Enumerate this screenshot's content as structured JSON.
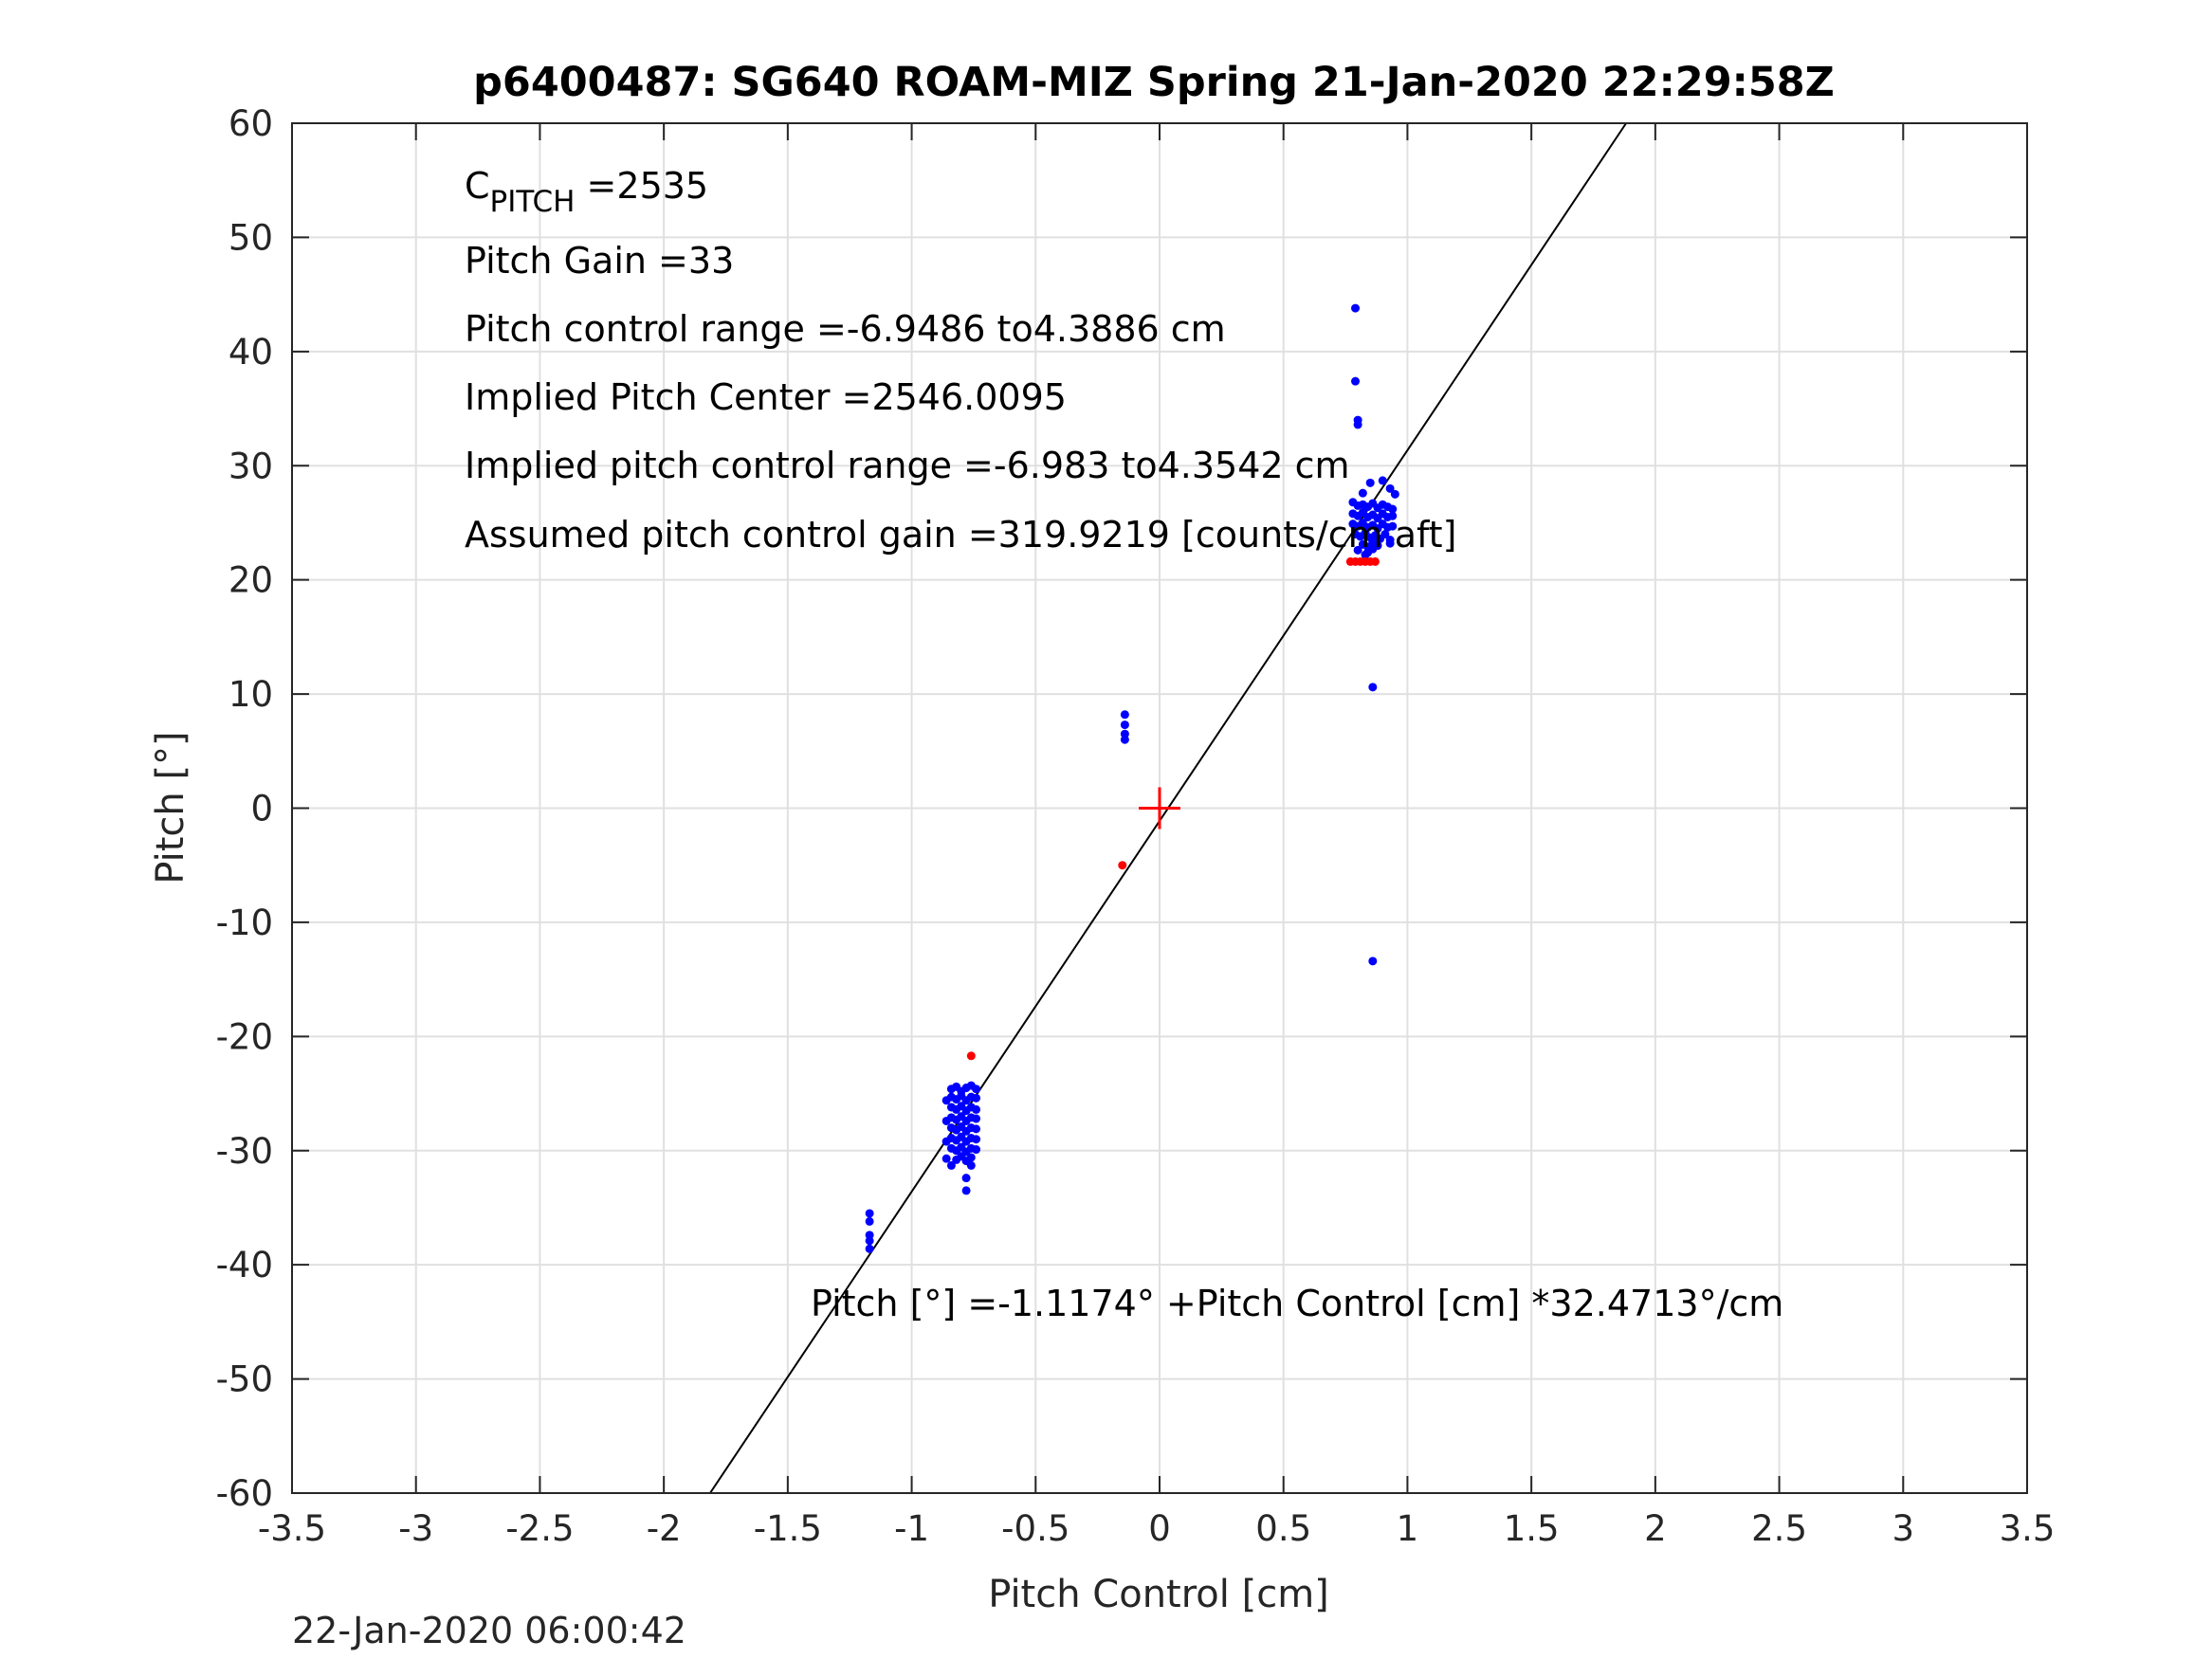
{
  "chart_data": {
    "type": "scatter",
    "title": "p6400487: SG640 ROAM-MIZ Spring 21-Jan-2020 22:29:58Z",
    "xlabel": "Pitch Control [cm]",
    "ylabel": "Pitch [°]",
    "xlim": [
      -3.5,
      3.5
    ],
    "ylim": [
      -60,
      60
    ],
    "xticks": [
      -3.5,
      -3,
      -2.5,
      -2,
      -1.5,
      -1,
      -0.5,
      0,
      0.5,
      1,
      1.5,
      2,
      2.5,
      3,
      3.5
    ],
    "xtick_labels": [
      "-3.5",
      "-3",
      "-2.5",
      "-2",
      "-1.5",
      "-1",
      "-0.5",
      "0",
      "0.5",
      "1",
      "1.5",
      "2",
      "2.5",
      "3",
      "3.5"
    ],
    "yticks": [
      -60,
      -50,
      -40,
      -30,
      -20,
      -10,
      0,
      10,
      20,
      30,
      40,
      50,
      60
    ],
    "ytick_labels": [
      "-60",
      "-50",
      "-40",
      "-30",
      "-20",
      "-10",
      "0",
      "10",
      "20",
      "30",
      "40",
      "50",
      "60"
    ],
    "grid": true,
    "colors": {
      "used": "#0000ff",
      "excluded": "#ff0000",
      "fit": "#000000",
      "center": "#ff0000"
    },
    "series": [
      {
        "points": [
          [
            0.79,
            43.8
          ],
          [
            0.79,
            37.4
          ],
          [
            0.8,
            34.0
          ],
          [
            0.8,
            33.6
          ],
          [
            0.86,
            10.6
          ],
          [
            0.86,
            -13.4
          ],
          [
            0.9,
            28.7
          ],
          [
            0.93,
            28.0
          ],
          [
            0.95,
            27.5
          ],
          [
            0.82,
            27.6
          ],
          [
            0.85,
            28.5
          ],
          [
            0.78,
            26.8
          ],
          [
            0.8,
            26.5
          ],
          [
            0.82,
            26.6
          ],
          [
            0.84,
            26.4
          ],
          [
            0.86,
            26.7
          ],
          [
            0.88,
            26.3
          ],
          [
            0.9,
            26.6
          ],
          [
            0.92,
            26.4
          ],
          [
            0.94,
            26.2
          ],
          [
            0.78,
            25.8
          ],
          [
            0.8,
            25.6
          ],
          [
            0.82,
            25.9
          ],
          [
            0.84,
            25.5
          ],
          [
            0.86,
            25.7
          ],
          [
            0.88,
            25.4
          ],
          [
            0.9,
            25.8
          ],
          [
            0.92,
            25.5
          ],
          [
            0.94,
            25.6
          ],
          [
            0.78,
            24.9
          ],
          [
            0.8,
            24.7
          ],
          [
            0.82,
            25.0
          ],
          [
            0.84,
            24.6
          ],
          [
            0.86,
            24.8
          ],
          [
            0.88,
            24.5
          ],
          [
            0.9,
            24.9
          ],
          [
            0.92,
            24.6
          ],
          [
            0.94,
            24.7
          ],
          [
            0.79,
            24.0
          ],
          [
            0.81,
            23.8
          ],
          [
            0.83,
            24.1
          ],
          [
            0.85,
            23.7
          ],
          [
            0.87,
            23.9
          ],
          [
            0.89,
            23.6
          ],
          [
            0.91,
            24.0
          ],
          [
            0.93,
            23.5
          ],
          [
            0.82,
            23.1
          ],
          [
            0.84,
            22.9
          ],
          [
            0.86,
            23.3
          ],
          [
            0.88,
            23.0
          ],
          [
            0.93,
            23.2
          ],
          [
            0.8,
            22.6
          ],
          [
            0.84,
            22.4
          ],
          [
            0.86,
            22.7
          ],
          [
            0.83,
            22.2
          ],
          [
            -0.14,
            8.2
          ],
          [
            -0.14,
            7.3
          ],
          [
            -0.14,
            6.5
          ],
          [
            -0.14,
            6.0
          ],
          [
            -0.78,
            -24.5
          ],
          [
            -0.8,
            -24.8
          ],
          [
            -0.82,
            -24.4
          ],
          [
            -0.84,
            -24.6
          ],
          [
            -0.76,
            -24.3
          ],
          [
            -0.74,
            -24.6
          ],
          [
            -0.76,
            -25.3
          ],
          [
            -0.78,
            -25.6
          ],
          [
            -0.8,
            -25.2
          ],
          [
            -0.82,
            -25.5
          ],
          [
            -0.84,
            -25.3
          ],
          [
            -0.86,
            -25.6
          ],
          [
            -0.74,
            -25.4
          ],
          [
            -0.76,
            -26.2
          ],
          [
            -0.78,
            -26.5
          ],
          [
            -0.8,
            -26.1
          ],
          [
            -0.82,
            -26.4
          ],
          [
            -0.84,
            -26.2
          ],
          [
            -0.74,
            -26.4
          ],
          [
            -0.76,
            -27.1
          ],
          [
            -0.78,
            -27.4
          ],
          [
            -0.8,
            -27.0
          ],
          [
            -0.82,
            -27.3
          ],
          [
            -0.84,
            -27.1
          ],
          [
            -0.86,
            -27.4
          ],
          [
            -0.74,
            -27.2
          ],
          [
            -0.76,
            -28.0
          ],
          [
            -0.78,
            -28.3
          ],
          [
            -0.8,
            -27.9
          ],
          [
            -0.82,
            -28.2
          ],
          [
            -0.84,
            -28.0
          ],
          [
            -0.74,
            -28.1
          ],
          [
            -0.76,
            -28.9
          ],
          [
            -0.78,
            -29.2
          ],
          [
            -0.8,
            -28.8
          ],
          [
            -0.82,
            -29.1
          ],
          [
            -0.84,
            -28.9
          ],
          [
            -0.86,
            -29.2
          ],
          [
            -0.74,
            -29.0
          ],
          [
            -0.76,
            -29.8
          ],
          [
            -0.78,
            -30.1
          ],
          [
            -0.8,
            -29.7
          ],
          [
            -0.82,
            -30.0
          ],
          [
            -0.84,
            -29.8
          ],
          [
            -0.74,
            -29.9
          ],
          [
            -0.76,
            -30.6
          ],
          [
            -0.78,
            -30.9
          ],
          [
            -0.8,
            -30.5
          ],
          [
            -0.82,
            -30.8
          ],
          [
            -0.86,
            -30.7
          ],
          [
            -0.76,
            -31.3
          ],
          [
            -0.84,
            -31.3
          ],
          [
            -0.78,
            -32.4
          ],
          [
            -0.78,
            -33.5
          ],
          [
            -1.17,
            -35.5
          ],
          [
            -1.17,
            -36.2
          ],
          [
            -1.17,
            -37.4
          ],
          [
            -1.17,
            -37.9
          ],
          [
            -1.17,
            -38.6
          ]
        ]
      },
      {
        "points": [
          [
            0.77,
            21.6
          ],
          [
            0.79,
            21.6
          ],
          [
            0.81,
            21.6
          ],
          [
            0.83,
            21.6
          ],
          [
            0.85,
            21.6
          ],
          [
            0.87,
            21.6
          ],
          [
            -0.15,
            -5.0
          ],
          [
            -0.76,
            -21.7
          ]
        ]
      }
    ],
    "fit_line": {
      "intercept": -1.1174,
      "slope": 32.4713
    },
    "center_marker": [
      0,
      0
    ],
    "annotations": {
      "c_pitch_main": "C",
      "c_pitch_sub": "PITCH",
      "c_pitch_value": " =2535",
      "pitch_gain": "Pitch Gain =33",
      "pitch_control_range": "Pitch control range =-6.9486 to4.3886 cm",
      "implied_pitch_center": "Implied Pitch Center =2546.0095",
      "implied_pitch_control_range": "Implied pitch control range =-6.983 to4.3542 cm",
      "assumed_gain": "Assumed pitch control gain =319.9219 [counts/cm aft]",
      "fit_equation": "Pitch [°] =-1.1174° +Pitch Control [cm] *32.4713°/cm"
    },
    "timestamp": "22-Jan-2020 06:00:42"
  }
}
